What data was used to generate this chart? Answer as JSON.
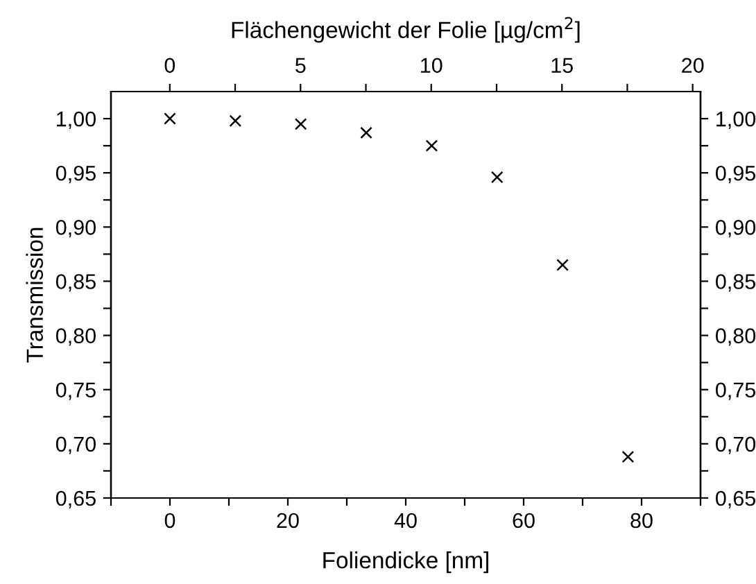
{
  "chart_data": {
    "type": "scatter",
    "xlabel": "Foliendicke [nm]",
    "ylabel": "Transmission",
    "x2label": "Flächengewicht der Folie [µg/cm$^{2}$]",
    "marker": "cross",
    "grid": false,
    "legend": false,
    "series": [
      {
        "color": "#000000",
        "x": [
          0,
          11.1,
          22.2,
          33.3,
          44.4,
          55.5,
          66.6,
          77.7
        ],
        "values": [
          1.0,
          0.998,
          0.995,
          0.987,
          0.975,
          0.946,
          0.865,
          0.688
        ]
      }
    ],
    "xlim": [
      -10,
      90
    ],
    "xticks": [
      {
        "value": -10,
        "label": null
      },
      0,
      {
        "value": 10,
        "label": null
      },
      20,
      {
        "value": 30,
        "label": null
      },
      40,
      {
        "value": 50,
        "label": null
      },
      60,
      {
        "value": 70,
        "label": null
      },
      80,
      {
        "value": 90,
        "label": null
      }
    ],
    "x2lim": [
      -2.25,
      20.3
    ],
    "x2ticks": [
      0,
      {
        "value": 2.5,
        "label": null
      },
      5,
      {
        "value": 7.5,
        "label": null
      },
      10,
      {
        "value": 12.5,
        "label": null
      },
      15,
      {
        "value": 17.5,
        "label": null
      },
      20
    ],
    "ylim": [
      0.65,
      1.025
    ],
    "yticks": [
      {
        "value": 0.65,
        "label": "0,65"
      },
      {
        "value": 0.675,
        "label": null
      },
      {
        "value": 0.7,
        "label": "0,70"
      },
      {
        "value": 0.725,
        "label": null
      },
      {
        "value": 0.75,
        "label": "0,75"
      },
      {
        "value": 0.775,
        "label": null
      },
      {
        "value": 0.8,
        "label": "0,80"
      },
      {
        "value": 0.825,
        "label": null
      },
      {
        "value": 0.85,
        "label": "0,85"
      },
      {
        "value": 0.875,
        "label": null
      },
      {
        "value": 0.9,
        "label": "0,90"
      },
      {
        "value": 0.925,
        "label": null
      },
      {
        "value": 0.95,
        "label": "0,95"
      },
      {
        "value": 0.975,
        "label": null
      },
      {
        "value": 1.0,
        "label": "1,00"
      }
    ],
    "y2lim": [
      0.65,
      1.025
    ],
    "y2ticks": [
      {
        "value": 0.65,
        "label": "0,65"
      },
      {
        "value": 0.675,
        "label": null
      },
      {
        "value": 0.7,
        "label": "0,70"
      },
      {
        "value": 0.725,
        "label": null
      },
      {
        "value": 0.75,
        "label": "0,75"
      },
      {
        "value": 0.775,
        "label": null
      },
      {
        "value": 0.8,
        "label": "0,80"
      },
      {
        "value": 0.825,
        "label": null
      },
      {
        "value": 0.85,
        "label": "0,85"
      },
      {
        "value": 0.875,
        "label": null
      },
      {
        "value": 0.9,
        "label": "0,90"
      },
      {
        "value": 0.925,
        "label": null
      },
      {
        "value": 0.95,
        "label": "0,95"
      },
      {
        "value": 0.975,
        "label": null
      },
      {
        "value": 1.0,
        "label": "1,00"
      }
    ]
  }
}
